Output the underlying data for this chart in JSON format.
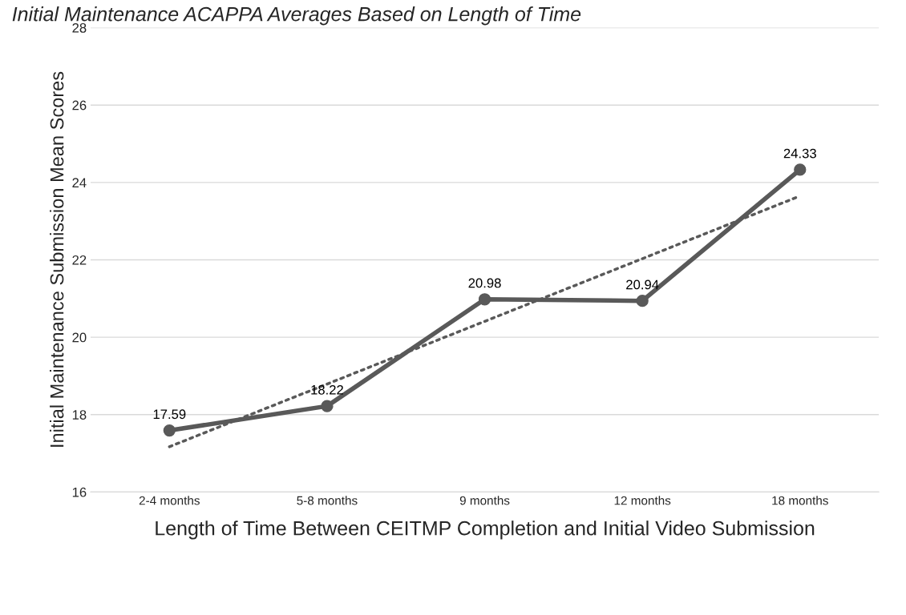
{
  "chart_data": {
    "type": "line",
    "title": "Initial Maintenance ACAPPA Averages Based on Length of Time",
    "xlabel": "Length of Time Between CEITMP Completion and Initial Video Submission",
    "ylabel": "Initial Maintenance Submission Mean Scores",
    "categories": [
      "2-4 months",
      "5-8 months",
      "9 months",
      "12 months",
      "18 months"
    ],
    "series": [
      {
        "color": "#595959",
        "values": [
          17.59,
          18.22,
          20.98,
          20.94,
          24.33
        ],
        "marker": "circle",
        "line_style": "solid",
        "data_labels": true
      },
      {
        "color": "#595959",
        "values": [
          17.17,
          18.79,
          20.41,
          22.03,
          23.65
        ],
        "marker": "none",
        "line_style": "dotted"
      }
    ],
    "ylim": [
      16,
      28
    ],
    "yticks": [
      16,
      18,
      20,
      22,
      24,
      26,
      28
    ],
    "grid": "y"
  }
}
